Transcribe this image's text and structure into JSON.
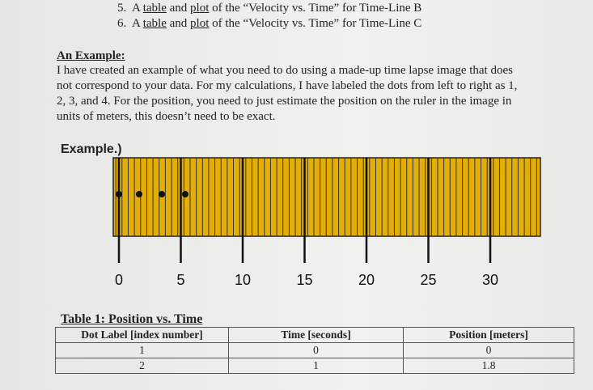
{
  "list": [
    {
      "number": "5.",
      "parts": [
        "A ",
        "table",
        " and ",
        "plot",
        " of the “Velocity vs. Time” for Time-Line B"
      ]
    },
    {
      "number": "6.",
      "parts": [
        "A ",
        "table",
        " and ",
        "plot",
        " of the “Velocity vs. Time” for Time-Line C"
      ]
    }
  ],
  "example": {
    "heading": "An Example:",
    "lines": [
      "I have created an example of what you need to do using a made-up time lapse image that does",
      "not correspond to your data.  For my calculations, I have labeled the dots from left to right as 1,",
      "2, 3, and 4.  For the position, you need to just estimate the position on the ruler in the image in",
      "units of meters, this doesn’t need to be exact."
    ]
  },
  "figure": {
    "caption": "Example.)",
    "ruler_labels": [
      0,
      5,
      10,
      15,
      20,
      25,
      30
    ]
  },
  "table": {
    "title": "Table 1: Position vs. Time",
    "header": [
      "Dot Label [index number]",
      "Time [seconds]",
      "Position [meters]"
    ],
    "rows": [
      [
        "1",
        "0",
        "0"
      ],
      [
        "2",
        "1",
        "1.8"
      ]
    ]
  }
}
